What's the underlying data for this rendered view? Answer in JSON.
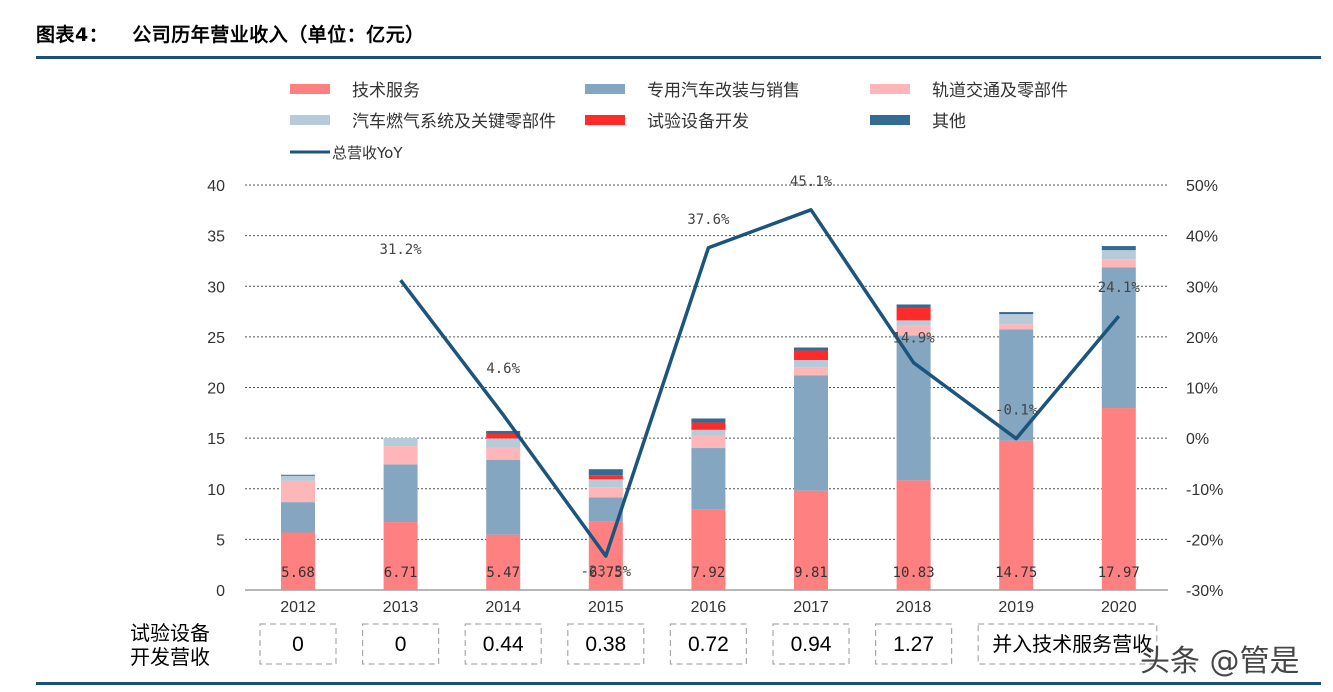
{
  "figure": {
    "title_prefix": "图表4：",
    "title_text": "公司历年营业收入（单位：亿元）"
  },
  "chart_data": {
    "type": "bar",
    "subtype": "stacked bar + line (dual axis)",
    "categories": [
      "2012",
      "2013",
      "2014",
      "2015",
      "2016",
      "2017",
      "2018",
      "2019",
      "2020"
    ],
    "y_left": {
      "lim": [
        0,
        40
      ],
      "ticks": [
        0,
        5,
        10,
        15,
        20,
        25,
        30,
        35,
        40
      ]
    },
    "y_right": {
      "lim": [
        -30,
        50
      ],
      "ticks": [
        "-30%",
        "-20%",
        "-10%",
        "0%",
        "10%",
        "20%",
        "30%",
        "40%",
        "50%"
      ],
      "values": [
        -30,
        -20,
        -10,
        0,
        10,
        20,
        30,
        40,
        50
      ]
    },
    "grid": "horizontal dashed",
    "legend_position": "top",
    "bar_series": [
      {
        "name": "技术服务",
        "color": "#ff8080",
        "values": [
          5.68,
          6.71,
          5.47,
          6.75,
          7.92,
          9.81,
          10.83,
          14.75,
          17.97
        ]
      },
      {
        "name": "专用汽车改装与销售",
        "color": "#84a6c0",
        "values": [
          3.0,
          5.7,
          7.4,
          2.4,
          6.1,
          11.4,
          14.3,
          11.0,
          13.9
        ]
      },
      {
        "name": "轨道交通及零部件",
        "color": "#ffb6b9",
        "values": [
          2.1,
          1.8,
          1.2,
          1.0,
          1.2,
          0.8,
          1.0,
          0.5,
          0.8
        ]
      },
      {
        "name": "汽车燃气系统及关键零部件",
        "color": "#b7cad9",
        "values": [
          0.5,
          0.8,
          0.9,
          0.8,
          0.6,
          0.7,
          0.5,
          1.0,
          0.9
        ]
      },
      {
        "name": "试验设备开发",
        "color": "#ff2a2a",
        "values": [
          0,
          0,
          0.44,
          0.38,
          0.72,
          0.94,
          1.27,
          0,
          0
        ]
      },
      {
        "name": "其他",
        "color": "#336b93",
        "values": [
          0.1,
          0,
          0.3,
          0.6,
          0.4,
          0.3,
          0.3,
          0.2,
          0.4
        ]
      }
    ],
    "bar_data_labels": [
      "5.68",
      "6.71",
      "5.47",
      "6.75",
      "7.92",
      "9.81",
      "10.83",
      "14.75",
      "17.97"
    ],
    "line_series": {
      "name": "总营收YoY",
      "color": "#1b557d",
      "values": [
        null,
        31.2,
        4.6,
        -23.3,
        37.6,
        45.1,
        14.9,
        -0.1,
        24.1
      ],
      "labels": [
        "",
        "31.2%",
        "4.6%",
        "-23.3%",
        "37.6%",
        "45.1%",
        "14.9%",
        "-0.1%",
        "24.1%"
      ]
    },
    "table_row": {
      "header_line1": "试验设备",
      "header_line2": "开发营收",
      "cells": [
        "0",
        "0",
        "0.44",
        "0.38",
        "0.72",
        "0.94",
        "1.27"
      ],
      "merged_cell": "并入技术服务营收"
    }
  },
  "watermark": "头条 @管是"
}
